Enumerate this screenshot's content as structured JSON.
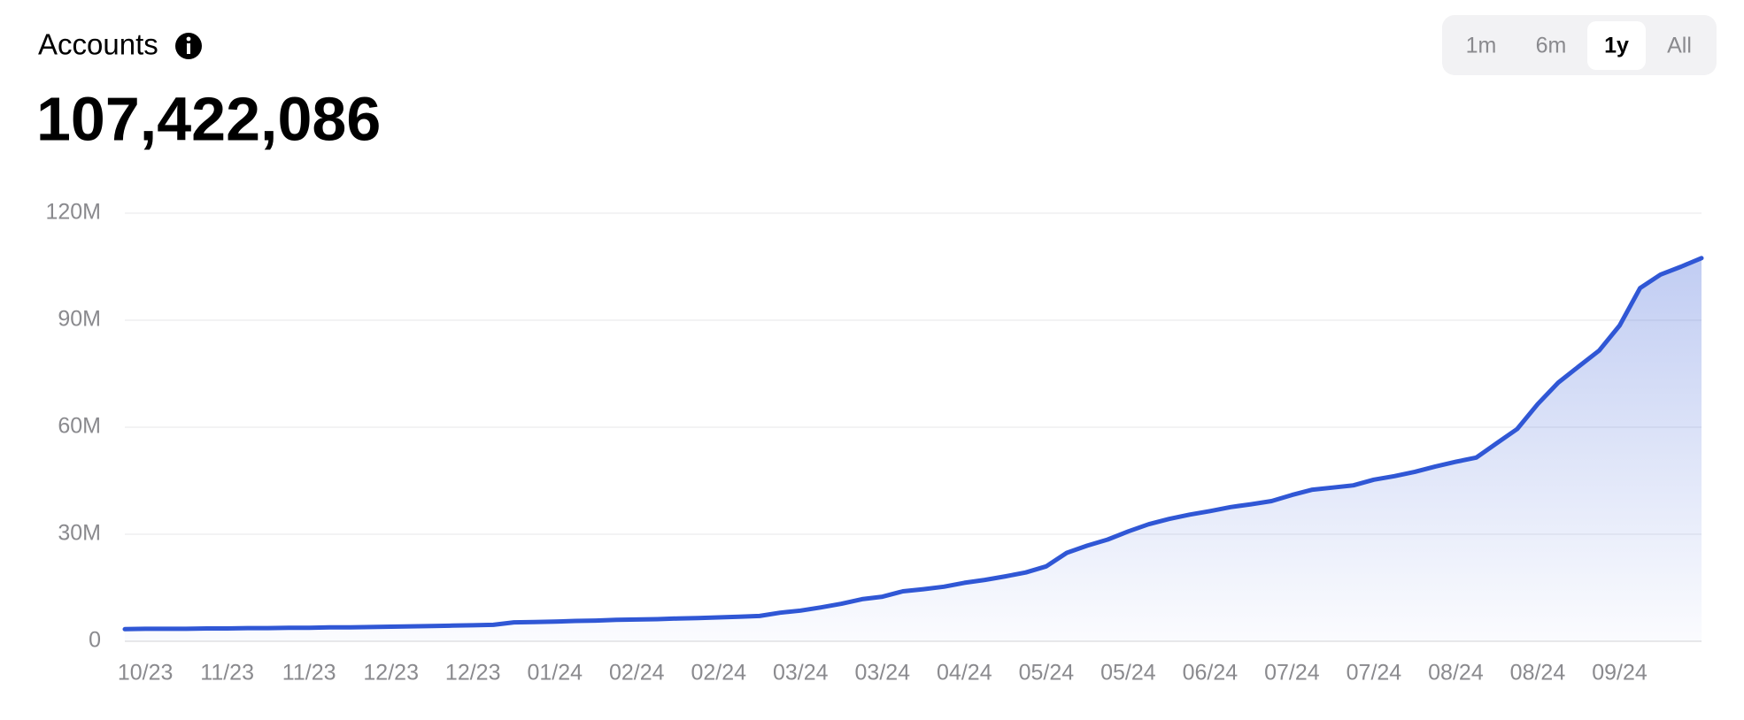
{
  "header": {
    "title": "Accounts",
    "total": "107,422,086"
  },
  "range_buttons": [
    "1m",
    "6m",
    "1y",
    "All"
  ],
  "selected_range": 2,
  "chart_data": {
    "type": "area",
    "color": "#3057d5",
    "grid": true,
    "categories": [
      null,
      "10/23",
      null,
      null,
      null,
      "11/23",
      null,
      null,
      null,
      "11/23",
      null,
      null,
      null,
      "12/23",
      null,
      null,
      null,
      "12/23",
      null,
      null,
      null,
      "01/24",
      null,
      null,
      null,
      "02/24",
      null,
      null,
      null,
      "02/24",
      null,
      null,
      null,
      "03/24",
      null,
      null,
      null,
      "03/24",
      null,
      null,
      null,
      "04/24",
      null,
      null,
      null,
      "05/24",
      null,
      null,
      null,
      "05/24",
      null,
      null,
      null,
      "06/24",
      null,
      null,
      null,
      "07/24",
      null,
      null,
      null,
      "07/24",
      null,
      null,
      null,
      "08/24",
      null,
      null,
      null,
      "08/24",
      null,
      null,
      null,
      "09/24",
      null,
      null,
      null,
      null
    ],
    "values": [
      3.4,
      3.5,
      3.5,
      3.5,
      3.6,
      3.6,
      3.7,
      3.7,
      3.8,
      3.8,
      3.9,
      3.9,
      4.0,
      4.1,
      4.2,
      4.3,
      4.4,
      4.5,
      4.6,
      5.3,
      5.4,
      5.5,
      5.7,
      5.8,
      6.0,
      6.1,
      6.2,
      6.4,
      6.5,
      6.7,
      6.9,
      7.1,
      8.0,
      8.6,
      9.5,
      10.5,
      11.8,
      12.5,
      14.0,
      14.6,
      15.3,
      16.4,
      17.2,
      18.2,
      19.3,
      21.0,
      24.8,
      26.8,
      28.5,
      30.8,
      32.8,
      34.3,
      35.5,
      36.5,
      37.6,
      38.4,
      39.3,
      41.0,
      42.5,
      43.1,
      43.7,
      45.3,
      46.3,
      47.5,
      49.0,
      50.3,
      51.5,
      55.5,
      59.5,
      66.5,
      72.5,
      77.0,
      81.5,
      88.5,
      99.0,
      102.8,
      105.0,
      107.4
    ],
    "ylim": [
      0,
      120
    ],
    "yticks": [
      0,
      {
        "value": 30,
        "label": "30M"
      },
      {
        "value": 60,
        "label": "60M"
      },
      {
        "value": 90,
        "label": "90M"
      },
      {
        "value": 120,
        "label": "120M"
      }
    ]
  }
}
